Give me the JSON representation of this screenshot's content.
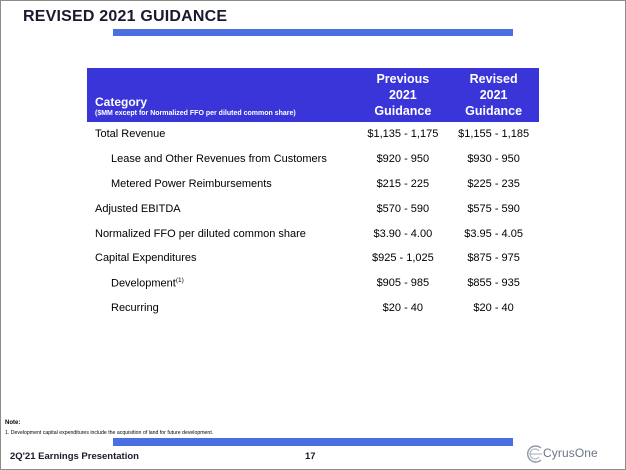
{
  "slide": {
    "title": "REVISED 2021 GUIDANCE"
  },
  "table": {
    "header": {
      "category": "Category",
      "category_sub": "($MM except for Normalized FFO per diluted common share)",
      "col_previous": [
        "Previous",
        "2021",
        "Guidance"
      ],
      "col_revised": [
        "Revised",
        "2021",
        "Guidance"
      ]
    },
    "rows": [
      {
        "label": "Total Revenue",
        "previous": "$1,135 - 1,175",
        "revised": "$1,155 - 1,185"
      },
      {
        "label": "Lease and Other Revenues from Customers",
        "previous": "$920 - 950",
        "revised": "$930 - 950"
      },
      {
        "label": "Metered Power Reimbursements",
        "previous": "$215 - 225",
        "revised": "$225 - 235"
      },
      {
        "label": "Adjusted EBITDA",
        "previous": "$570 - 590",
        "revised": "$575 - 590"
      },
      {
        "label": "Normalized FFO per diluted common share",
        "previous": "$3.90 - 4.00",
        "revised": "$3.95 - 4.05"
      },
      {
        "label": "Capital Expenditures",
        "previous": "$925 - 1,025",
        "revised": "$875 - 975"
      },
      {
        "label": "Development",
        "footnote_ref": "(1)",
        "previous": "$905 - 985",
        "revised": "$855 - 935"
      },
      {
        "label": "Recurring",
        "previous": "$20 - 40",
        "revised": "$20 - 40"
      }
    ]
  },
  "notes": {
    "title": "Note:",
    "items": [
      "1.  Development capital expenditures include the acquisition of land for future development."
    ]
  },
  "footer": {
    "presentation": "2Q'21 Earnings Presentation",
    "page_number": "17",
    "logo_text": "CyrusOne"
  },
  "colors": {
    "header_fill": "#3a35d8",
    "accent_bar": "#4a6fe0",
    "logo_gray": "#6b7587"
  },
  "icons": {
    "logo": "cyrusone-logo-icon"
  }
}
